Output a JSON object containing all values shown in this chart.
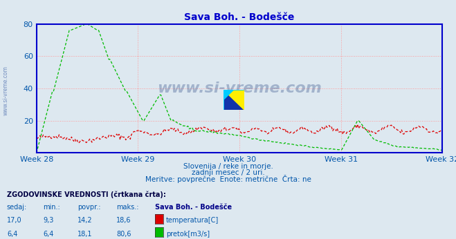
{
  "title": "Sava Boh. - Bodešče",
  "title_color": "#0000cc",
  "bg_color": "#dde8f0",
  "plot_bg_color": "#dde8f0",
  "grid_color": "#ff9999",
  "axis_color": "#0000cc",
  "text_color": "#0055aa",
  "ylim": [
    0,
    80
  ],
  "yticks": [
    20,
    40,
    60,
    80
  ],
  "week_labels": [
    "Week 28",
    "Week 29",
    "Week 30",
    "Week 31",
    "Week 32"
  ],
  "week_positions": [
    0,
    84,
    168,
    252,
    336
  ],
  "subtitle1": "Slovenija / reke in morje.",
  "subtitle2": "zadnji mesec / 2 uri.",
  "subtitle3": "Meritve: povprečne  Enote: metrične  Črta: ne",
  "watermark": "www.si-vreme.com",
  "legend_title": "ZGODOVINSKE VREDNOSTI (črtkana črta):",
  "legend_headers": [
    "sedaj:",
    "min.:",
    "povpr.:",
    "maks.:",
    "Sava Boh. - Bodešče"
  ],
  "legend_row1": [
    "17,0",
    "9,3",
    "14,2",
    "18,6",
    "temperatura[C]"
  ],
  "legend_row2": [
    "6,4",
    "6,4",
    "18,1",
    "80,6",
    "pretok[m3/s]"
  ],
  "temp_color": "#dd0000",
  "flow_color": "#00bb00",
  "n_points": 360
}
